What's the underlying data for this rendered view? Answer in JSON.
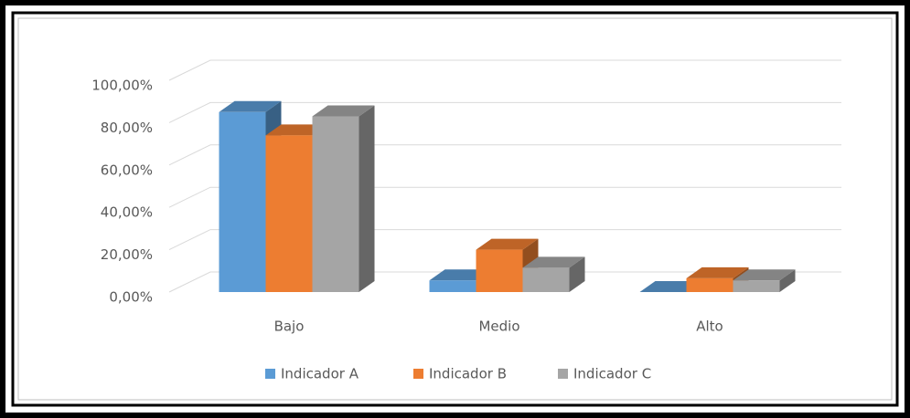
{
  "chart_data": {
    "type": "bar3d",
    "categories": [
      "Bajo",
      "Medio",
      "Alto"
    ],
    "series": [
      {
        "name": "Indicador A",
        "color": "#5b9bd5",
        "values": [
          85,
          5.5,
          0
        ]
      },
      {
        "name": "Indicador B",
        "color": "#ed7d31",
        "values": [
          74,
          20,
          6.5
        ]
      },
      {
        "name": "Indicador C",
        "color": "#a5a5a5",
        "values": [
          83,
          11.5,
          5.5
        ]
      }
    ],
    "ylim": [
      0,
      100
    ],
    "yticks": [
      {
        "value": 0,
        "label": "0,00%"
      },
      {
        "value": 20,
        "label": "20,00%"
      },
      {
        "value": 40,
        "label": "40,00%"
      },
      {
        "value": 60,
        "label": "60,00%"
      },
      {
        "value": 80,
        "label": "80,00%"
      },
      {
        "value": 100,
        "label": "100,00%"
      }
    ],
    "grid": true,
    "legend": "bottom"
  }
}
